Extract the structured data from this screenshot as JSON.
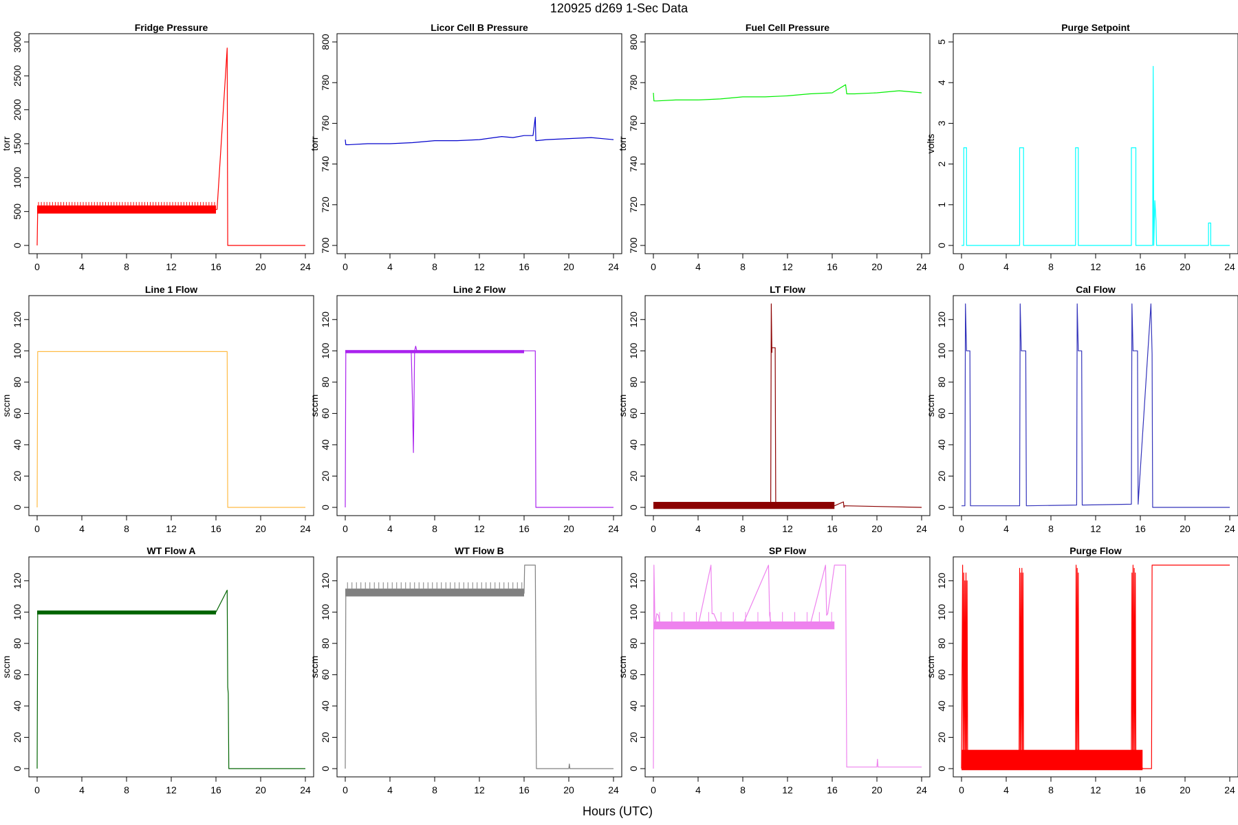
{
  "figure": {
    "title": "120925   d269   1-Sec Data",
    "xlabel": "Hours (UTC)"
  },
  "chart_data": [
    {
      "type": "line",
      "title": "Fridge Pressure",
      "ylabel": "torr",
      "color": "#ff0000",
      "xlim": [
        0,
        24
      ],
      "ylim": [
        0,
        3000
      ],
      "xticks": [
        0,
        4,
        8,
        12,
        16,
        20,
        24
      ],
      "yticks": [
        0,
        500,
        1000,
        1500,
        2000,
        2500,
        3000
      ],
      "band": {
        "x": [
          0,
          16
        ],
        "low": 470,
        "high": 590,
        "spike_high": 640,
        "spike_every": 0.25
      },
      "series": [
        {
          "x": [
            0,
            0.05,
            16,
            16.1,
            17,
            17.05,
            24
          ],
          "y": [
            0,
            530,
            530,
            530,
            2910,
            0,
            0
          ]
        }
      ]
    },
    {
      "type": "line",
      "title": "Licor Cell B Pressure",
      "ylabel": "torr",
      "color": "#0000cc",
      "xlim": [
        0,
        24
      ],
      "ylim": [
        700,
        800
      ],
      "xticks": [
        0,
        4,
        8,
        12,
        16,
        20,
        24
      ],
      "yticks": [
        700,
        720,
        740,
        760,
        780,
        800
      ],
      "series": [
        {
          "x": [
            0,
            0.05,
            0.3,
            2,
            4,
            6,
            8,
            10,
            12,
            14,
            15,
            16,
            16.8,
            17,
            17.05,
            17.1,
            18,
            20,
            22,
            24
          ],
          "y": [
            752,
            749.5,
            749.5,
            750,
            750,
            750.5,
            751.5,
            751.5,
            752,
            753.5,
            753,
            754,
            754,
            763,
            751.5,
            751.5,
            752,
            752.5,
            753,
            752
          ]
        }
      ]
    },
    {
      "type": "line",
      "title": "Fuel Cell Pressure",
      "ylabel": "torr",
      "color": "#00ee00",
      "xlim": [
        0,
        24
      ],
      "ylim": [
        700,
        800
      ],
      "xticks": [
        0,
        4,
        8,
        12,
        16,
        20,
        24
      ],
      "yticks": [
        700,
        720,
        740,
        760,
        780,
        800
      ],
      "series": [
        {
          "x": [
            0,
            0.05,
            0.3,
            2,
            4,
            6,
            8,
            10,
            12,
            14,
            16,
            17.2,
            17.3,
            18,
            20,
            22,
            24
          ],
          "y": [
            775,
            771,
            771,
            771.5,
            771.5,
            772,
            773,
            773,
            773.5,
            774.5,
            775,
            779,
            774.5,
            774.5,
            775,
            776,
            775
          ]
        }
      ]
    },
    {
      "type": "line",
      "title": "Purge Setpoint",
      "ylabel": "volts",
      "color": "#00ffff",
      "xlim": [
        0,
        24
      ],
      "ylim": [
        0,
        5
      ],
      "xticks": [
        0,
        4,
        8,
        12,
        16,
        20,
        24
      ],
      "yticks": [
        0,
        1,
        2,
        3,
        4,
        5
      ],
      "series": [
        {
          "x": [
            0,
            0.2,
            0.2,
            0.45,
            0.45,
            5.2,
            5.2,
            5.55,
            5.55,
            10.2,
            10.2,
            10.45,
            10.45,
            15.2,
            15.2,
            15.6,
            15.6,
            17.1,
            17.15,
            17.2,
            17.3,
            17.4,
            17.45,
            22.1,
            22.1,
            22.3,
            22.3,
            24
          ],
          "y": [
            0,
            0,
            2.4,
            2.4,
            0,
            0,
            2.4,
            2.4,
            0,
            0,
            2.4,
            2.4,
            0,
            0,
            2.4,
            2.4,
            0,
            0,
            4.4,
            0,
            1.1,
            0.6,
            0,
            0,
            0.55,
            0.55,
            0,
            0
          ]
        }
      ]
    },
    {
      "type": "line",
      "title": "Line 1 Flow",
      "ylabel": "sccm",
      "color": "#ffbb44",
      "xlim": [
        0,
        24
      ],
      "ylim": [
        0,
        130
      ],
      "xticks": [
        0,
        4,
        8,
        12,
        16,
        20,
        24
      ],
      "yticks": [
        0,
        20,
        40,
        60,
        80,
        100,
        120
      ],
      "series": [
        {
          "x": [
            0,
            0.05,
            17,
            17.05,
            24
          ],
          "y": [
            0,
            99.5,
            99.5,
            0,
            0
          ]
        }
      ]
    },
    {
      "type": "line",
      "title": "Line 2 Flow",
      "ylabel": "sccm",
      "color": "#aa22ee",
      "xlim": [
        0,
        24
      ],
      "ylim": [
        0,
        130
      ],
      "xticks": [
        0,
        4,
        8,
        12,
        16,
        20,
        24
      ],
      "yticks": [
        0,
        20,
        40,
        60,
        80,
        100,
        120
      ],
      "band": {
        "x": [
          0,
          16
        ],
        "low": 98.5,
        "high": 100.5
      },
      "series": [
        {
          "x": [
            0,
            0.05,
            5.9,
            6.0,
            6.1,
            6.2,
            6.3,
            6.4,
            16,
            17,
            17.05,
            24
          ],
          "y": [
            0,
            100,
            100,
            72,
            35,
            100,
            103,
            100,
            100,
            100,
            0,
            0
          ]
        }
      ]
    },
    {
      "type": "line",
      "title": "LT Flow",
      "ylabel": "sccm",
      "color": "#8b0000",
      "xlim": [
        0,
        24
      ],
      "ylim": [
        0,
        130
      ],
      "xticks": [
        0,
        4,
        8,
        12,
        16,
        20,
        24
      ],
      "yticks": [
        0,
        20,
        40,
        60,
        80,
        100,
        120
      ],
      "band": {
        "x": [
          0,
          16.2
        ],
        "low": -1,
        "high": 3.5
      },
      "series": [
        {
          "x": [
            0,
            10.5,
            10.55,
            10.6,
            10.6,
            10.9,
            10.9,
            10.95,
            16.2,
            17,
            17.05,
            17.1,
            24
          ],
          "y": [
            1,
            1,
            130,
            99,
            102,
            102,
            99,
            1,
            1,
            3.5,
            0,
            1,
            0
          ]
        }
      ]
    },
    {
      "type": "line",
      "title": "Cal Flow",
      "ylabel": "sccm",
      "color": "#3333bb",
      "xlim": [
        0,
        24
      ],
      "ylim": [
        0,
        130
      ],
      "xticks": [
        0,
        4,
        8,
        12,
        16,
        20,
        24
      ],
      "yticks": [
        0,
        20,
        40,
        60,
        80,
        100,
        120
      ],
      "series": [
        {
          "x": [
            0,
            0.3,
            0.35,
            0.45,
            0.45,
            0.75,
            0.8,
            5.2,
            5.25,
            5.35,
            5.35,
            5.75,
            5.8,
            10.3,
            10.35,
            10.45,
            10.45,
            10.75,
            10.8,
            15.2,
            15.25,
            15.35,
            15.35,
            15.75,
            15.8,
            16.95,
            17.05,
            17.1,
            24
          ],
          "y": [
            1,
            1,
            130,
            100,
            100,
            100,
            1,
            1,
            130,
            100,
            100,
            100,
            1,
            1.5,
            130,
            100,
            100,
            100,
            1.5,
            2,
            130,
            100,
            100,
            100,
            2,
            130,
            98,
            0,
            0
          ]
        }
      ]
    },
    {
      "type": "line",
      "title": "WT Flow A",
      "ylabel": "sccm",
      "color": "#006400",
      "xlim": [
        0,
        24
      ],
      "ylim": [
        0,
        130
      ],
      "xticks": [
        0,
        4,
        8,
        12,
        16,
        20,
        24
      ],
      "yticks": [
        0,
        20,
        40,
        60,
        80,
        100,
        120
      ],
      "band": {
        "x": [
          0,
          16
        ],
        "low": 98.5,
        "high": 101
      },
      "series": [
        {
          "x": [
            0,
            0.05,
            16,
            17,
            17.05,
            17.1,
            17.15,
            24
          ],
          "y": [
            0,
            100,
            100,
            114,
            52,
            48,
            0,
            0
          ]
        }
      ]
    },
    {
      "type": "line",
      "title": "WT Flow B",
      "ylabel": "sccm",
      "color": "#808080",
      "xlim": [
        0,
        24
      ],
      "ylim": [
        0,
        130
      ],
      "xticks": [
        0,
        4,
        8,
        12,
        16,
        20,
        24
      ],
      "yticks": [
        0,
        20,
        40,
        60,
        80,
        100,
        120
      ],
      "band": {
        "x": [
          0,
          16
        ],
        "low": 110,
        "high": 115,
        "spike_high": 119,
        "spike_every": 0.4
      },
      "series": [
        {
          "x": [
            0,
            0.05,
            2,
            4,
            6,
            8,
            10,
            12,
            14,
            16,
            16.05,
            17,
            17.1,
            20,
            20.05,
            20.1,
            24
          ],
          "y": [
            0,
            113,
            113,
            113,
            112.5,
            112.5,
            112,
            112,
            112,
            112,
            130,
            130,
            0,
            0,
            3,
            0,
            0
          ]
        }
      ]
    },
    {
      "type": "line",
      "title": "SP Flow",
      "ylabel": "sccm",
      "color": "#ee82ee",
      "xlim": [
        0,
        24
      ],
      "ylim": [
        0,
        130
      ],
      "xticks": [
        0,
        4,
        8,
        12,
        16,
        20,
        24
      ],
      "yticks": [
        0,
        20,
        40,
        60,
        80,
        100,
        120
      ],
      "band": {
        "x": [
          0,
          16.2
        ],
        "low": 89,
        "high": 94,
        "spike_high": 100,
        "spike_every": 1.1
      },
      "series": [
        {
          "x": [
            0,
            0.05,
            0.15,
            0.3,
            0.45,
            0.6,
            2,
            4,
            5.15,
            5.25,
            5.4,
            5.8,
            6,
            8,
            10.3,
            10.4,
            10.55,
            10.8,
            12,
            14,
            15.4,
            15.5,
            15.6,
            16.2,
            16.4,
            17.2,
            17.3,
            19,
            20,
            20.05,
            20.1,
            24
          ],
          "y": [
            0,
            130,
            90,
            99,
            98,
            92,
            91,
            91,
            130,
            99,
            99,
            92,
            92,
            92,
            130,
            98,
            92,
            91,
            91,
            91,
            130,
            98,
            99,
            130,
            130,
            130,
            1,
            1,
            1,
            6,
            1,
            1
          ]
        }
      ]
    },
    {
      "type": "line",
      "title": "Purge Flow",
      "ylabel": "sccm",
      "color": "#ff0000",
      "xlim": [
        0,
        24
      ],
      "ylim": [
        0,
        130
      ],
      "xticks": [
        0,
        4,
        8,
        12,
        16,
        20,
        24
      ],
      "yticks": [
        0,
        20,
        40,
        60,
        80,
        100,
        120
      ],
      "band": {
        "x": [
          0,
          16.2
        ],
        "low": -1,
        "high": 12
      },
      "series": [
        {
          "x": [
            0,
            0.1,
            0.15,
            0.2,
            0.25,
            0.3,
            0.35,
            0.4,
            0.45,
            0.5,
            0.55,
            0.6,
            5.1,
            5.15,
            5.2,
            5.25,
            5.3,
            5.35,
            5.4,
            5.45,
            5.5,
            5.55,
            10.2,
            10.25,
            10.3,
            10.35,
            10.4,
            10.45,
            10.5,
            15.2,
            15.25,
            15.3,
            15.35,
            15.4,
            15.45,
            15.5,
            15.55,
            15.6,
            16.2,
            17.0,
            17.05,
            17.15,
            24
          ],
          "y": [
            0,
            130,
            5,
            125,
            5,
            120,
            5,
            125,
            5,
            120,
            5,
            10,
            10,
            5,
            128,
            5,
            125,
            5,
            128,
            5,
            125,
            10,
            10,
            130,
            5,
            128,
            5,
            125,
            10,
            10,
            125,
            5,
            130,
            5,
            128,
            5,
            125,
            10,
            0,
            0,
            130,
            130,
            130
          ]
        }
      ]
    }
  ]
}
